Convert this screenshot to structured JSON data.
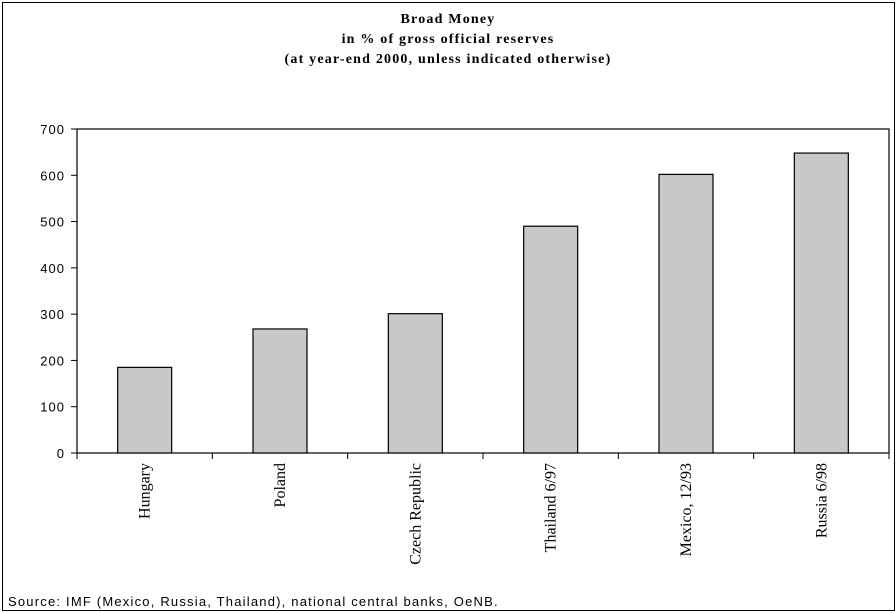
{
  "chart_data": {
    "type": "bar",
    "title_lines": [
      "Broad Money",
      "in % of gross official reserves",
      "(at year-end 2000, unless indicated otherwise)"
    ],
    "categories": [
      "Hungary",
      "Poland",
      "Czech Republic",
      "Thailand 6/97",
      "Mexico, 12/93",
      "Russia 6/98"
    ],
    "values": [
      185,
      268,
      301,
      490,
      602,
      648
    ],
    "ylim": [
      0,
      700
    ],
    "yticks": [
      "0",
      "100",
      "200",
      "300",
      "400",
      "500",
      "600",
      "700"
    ],
    "grid": false,
    "bar_color": "#c8c8c8",
    "source": "Source: IMF (Mexico, Russia, Thailand), national central banks, OeNB."
  }
}
